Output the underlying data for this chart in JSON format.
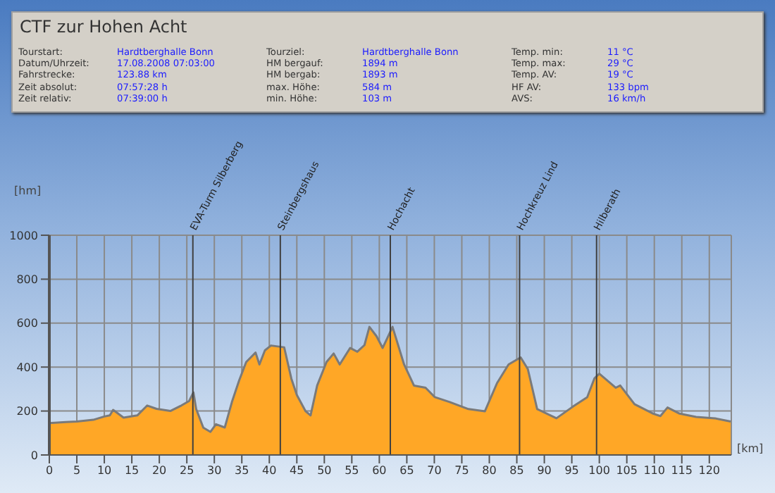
{
  "chart_data": {
    "type": "area",
    "title": "CTF zur Hohen Acht",
    "annotations": [
      "Tourstart:",
      "Hardtberghalle Bonn",
      "Datum/Uhrzeit:",
      "17.08.2008 07:03:00",
      "Fahrstrecke:",
      "123.88 km",
      "Zeit absolut:",
      "07:57:28 h",
      "Zeit relativ:",
      "07:39:00 h",
      "Tourziel:",
      "Hardtberghalle Bonn",
      "HM bergauf:",
      "1894 m",
      "HM bergab:",
      "1893 m",
      "max. Höhe:",
      "584 m",
      "min. Höhe:",
      "103 m",
      "Temp. min:",
      "11 °C",
      "Temp. max:",
      "29 °C",
      "Temp. AV:",
      "19 °C",
      "HF AV:",
      "133 bpm",
      "AVS:",
      "16 km/h"
    ],
    "xlabel": "[km]",
    "ylabel": "[hm]",
    "x": [
      0,
      3,
      5,
      8,
      10,
      11,
      11.6,
      13.5,
      16,
      17.8,
      19.5,
      22,
      24,
      25.4,
      26.2,
      26.7,
      28,
      29.3,
      30.3,
      31.9,
      33.2,
      34.5,
      35.8,
      37.5,
      38.2,
      39.2,
      40.3,
      42.7,
      44,
      45,
      46.6,
      47.5,
      48.7,
      50.4,
      51.7,
      52.8,
      54.7,
      56,
      57.3,
      58.2,
      59.5,
      60.6,
      61.6,
      62.4,
      64.5,
      66.3,
      68.4,
      70.1,
      72.8,
      76.2,
      79.2,
      81.4,
      83.5,
      85.7,
      87,
      88.7,
      92.2,
      95.2,
      97.8,
      99.1,
      100,
      103,
      103.8,
      106.4,
      109.8,
      111.1,
      112.4,
      114.6,
      117.6,
      121,
      123.88
    ],
    "series": [
      {
        "color": "#ffa726",
        "values": [
          145,
          150,
          152,
          160,
          175,
          180,
          205,
          170,
          180,
          225,
          210,
          200,
          225,
          245,
          285,
          209,
          124,
          105,
          140,
          125,
          241,
          338,
          423,
          466,
          412,
          476,
          498,
          490,
          348,
          273,
          199,
          180,
          316,
          423,
          462,
          412,
          487,
          470,
          500,
          583,
          540,
          487,
          540,
          583,
          412,
          316,
          306,
          263,
          241,
          209,
          199,
          327,
          412,
          444,
          391,
          209,
          167,
          220,
          263,
          348,
          370,
          306,
          316,
          231,
          188,
          177,
          216,
          188,
          173,
          167,
          152
        ]
      }
    ],
    "xlim": [
      0,
      124
    ],
    "xticks": [
      0,
      5,
      10,
      15,
      20,
      25,
      30,
      35,
      40,
      45,
      50,
      55,
      60,
      65,
      70,
      75,
      80,
      85,
      90,
      95,
      100,
      105,
      110,
      115,
      120
    ],
    "ylim": [
      0,
      1000
    ],
    "yticks": [
      0,
      200,
      400,
      600,
      800,
      1000
    ],
    "grid": true,
    "ref_lines": [
      {
        "axis": "x",
        "value": 26.1,
        "label": "EVA-Turm Silberberg"
      },
      {
        "axis": "x",
        "value": 42,
        "label": "Steinbergshaus"
      },
      {
        "axis": "x",
        "value": 62,
        "label": "Hochacht"
      },
      {
        "axis": "x",
        "value": 85.5,
        "label": "Hochkreuz Lind"
      },
      {
        "axis": "x",
        "value": 99.5,
        "label": "Hilberath"
      }
    ]
  }
}
